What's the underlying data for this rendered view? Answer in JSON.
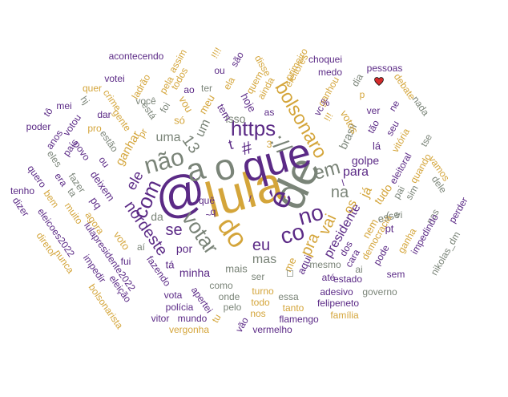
{
  "colors": {
    "purple": "#5b2a86",
    "gold": "#d4a53a",
    "gray": "#7a8478",
    "heart": "#d42b2b"
  },
  "heart_icon": "heart-emoji",
  "words": [
    {
      "text": "lula",
      "color": "gold"
    },
    {
      "text": "@",
      "color": "purple"
    },
    {
      "text": "de",
      "color": "gray"
    },
    {
      "text": "que",
      "color": "purple"
    },
    {
      "text": "o",
      "color": "gray"
    },
    {
      "text": "a",
      "color": "gray"
    },
    {
      "text": "é",
      "color": "purple"
    },
    {
      "text": "do",
      "color": "gold"
    },
    {
      "text": "não",
      "color": "gray"
    },
    {
      "text": "://",
      "color": "gray"
    },
    {
      "text": "no",
      "color": "purple"
    },
    {
      "text": "co",
      "color": "purple"
    },
    {
      "text": "com",
      "color": "purple"
    },
    {
      "text": "votar",
      "color": "gray"
    },
    {
      "text": "https",
      "color": "purple"
    },
    {
      "text": "bolsonaro",
      "color": "gold"
    },
    {
      "text": "em",
      "color": "gray"
    },
    {
      "text": "pra",
      "color": "gold"
    },
    {
      "text": "vai",
      "color": "gold"
    },
    {
      "text": "nordeste",
      "color": "purple"
    },
    {
      "text": "eu",
      "color": "purple"
    },
    {
      "text": "13",
      "color": "gray"
    },
    {
      "text": "se",
      "color": "purple"
    },
    {
      "text": "na",
      "color": "gray"
    },
    {
      "text": "#",
      "color": "purple"
    },
    {
      "text": "t",
      "color": "purple"
    },
    {
      "text": "ele",
      "color": "purple"
    },
    {
      "text": "uma",
      "color": "gray"
    },
    {
      "text": "um",
      "color": "gray"
    },
    {
      "text": "presidente",
      "color": "purple"
    },
    {
      "text": "os",
      "color": "gold"
    },
    {
      "text": "já",
      "color": "gold"
    },
    {
      "text": "para",
      "color": "purple"
    },
    {
      "text": "mas",
      "color": "gray"
    },
    {
      "text": "da",
      "color": "gray"
    },
    {
      "text": "por",
      "color": "purple"
    },
    {
      "text": "minha",
      "color": "purple"
    },
    {
      "text": "ganhar",
      "color": "gold"
    },
    {
      "text": "isso",
      "color": "gray"
    },
    {
      "text": "golpe",
      "color": "purple"
    },
    {
      "text": "brasil",
      "color": "gray"
    },
    {
      "text": "tudo",
      "color": "gold"
    },
    {
      "text": "votos",
      "color": "gold"
    },
    {
      "text": "hoje",
      "color": "purple"
    },
    {
      "text": "tem",
      "color": "purple"
    },
    {
      "text": "deixem",
      "color": "purple"
    },
    {
      "text": "só",
      "color": "gold"
    },
    {
      "text": "meu",
      "color": "gold"
    },
    {
      "text": "pq",
      "color": "purple"
    },
    {
      "text": "voto",
      "color": "gold"
    },
    {
      "text": "vou",
      "color": "gold"
    },
    {
      "text": "lá",
      "color": "purple"
    },
    {
      "text": "esse",
      "color": "gray"
    },
    {
      "text": "pt",
      "color": "purple"
    },
    {
      "text": "nem",
      "color": "gold"
    },
    {
      "text": "tá",
      "color": "purple"
    },
    {
      "text": "mais",
      "color": "gray"
    },
    {
      "text": "me",
      "color": "gold"
    },
    {
      "text": "aqui",
      "color": "purple"
    },
    {
      "text": "ser",
      "color": "gray"
    },
    {
      "text": "quem",
      "color": "gold"
    },
    {
      "text": "ainda",
      "color": "gold"
    },
    {
      "text": "disse",
      "color": "gold"
    },
    {
      "text": "eleitores",
      "color": "gold"
    },
    {
      "text": "primeiro",
      "color": "gold"
    },
    {
      "text": "choquei",
      "color": "purple"
    },
    {
      "text": "medo",
      "color": "purple"
    },
    {
      "text": "ganhou",
      "color": "gold"
    },
    {
      "text": "dia",
      "color": "gray"
    },
    {
      "text": "pessoas",
      "color": "purple"
    },
    {
      "text": "debate",
      "color": "gold"
    },
    {
      "text": "nada",
      "color": "gray"
    },
    {
      "text": "ver",
      "color": "purple"
    },
    {
      "text": "ne",
      "color": "purple"
    },
    {
      "text": "seu",
      "color": "purple"
    },
    {
      "text": "tão",
      "color": "purple"
    },
    {
      "text": "vitória",
      "color": "gold"
    },
    {
      "text": "eleitoral",
      "color": "purple"
    },
    {
      "text": "tse",
      "color": "gray"
    },
    {
      "text": "quando",
      "color": "gold"
    },
    {
      "text": "vamos",
      "color": "gold"
    },
    {
      "text": "dele",
      "color": "gray"
    },
    {
      "text": "sim",
      "color": "gray"
    },
    {
      "text": "pai",
      "color": "gray"
    },
    {
      "text": "perder",
      "color": "purple"
    },
    {
      "text": "nas",
      "color": "gray"
    },
    {
      "text": "ganha",
      "color": "gold"
    },
    {
      "text": "vc",
      "color": "purple"
    },
    {
      "text": "impedindo",
      "color": "purple"
    },
    {
      "text": "nikolas_dm",
      "color": "gray"
    },
    {
      "text": "sem",
      "color": "purple"
    },
    {
      "text": "pode",
      "color": "purple"
    },
    {
      "text": "democracia",
      "color": "gold"
    },
    {
      "text": "cara",
      "color": "purple"
    },
    {
      "text": "ai",
      "color": "gray"
    },
    {
      "text": "até",
      "color": "purple"
    },
    {
      "text": "mesmo",
      "color": "gray"
    },
    {
      "text": "estado",
      "color": "purple"
    },
    {
      "text": "adesivo",
      "color": "purple"
    },
    {
      "text": "governo",
      "color": "gray"
    },
    {
      "text": "felipeneto",
      "color": "purple"
    },
    {
      "text": "família",
      "color": "gold"
    },
    {
      "text": "tanto",
      "color": "gold"
    },
    {
      "text": "essa",
      "color": "gray"
    },
    {
      "text": "flamengo",
      "color": "purple"
    },
    {
      "text": "vermelho",
      "color": "purple"
    },
    {
      "text": "todo",
      "color": "gold"
    },
    {
      "text": "nos",
      "color": "gold"
    },
    {
      "text": "turno",
      "color": "gold"
    },
    {
      "text": "onde",
      "color": "gray"
    },
    {
      "text": "pelo",
      "color": "gray"
    },
    {
      "text": "vão",
      "color": "purple"
    },
    {
      "text": "tu",
      "color": "gold"
    },
    {
      "text": "como",
      "color": "gray"
    },
    {
      "text": "apertei",
      "color": "purple"
    },
    {
      "text": "mundo",
      "color": "purple"
    },
    {
      "text": "vitor",
      "color": "purple"
    },
    {
      "text": "vergonha",
      "color": "gold"
    },
    {
      "text": "polícia",
      "color": "purple"
    },
    {
      "text": "vota",
      "color": "purple"
    },
    {
      "text": "fazendo",
      "color": "purple"
    },
    {
      "text": "fui",
      "color": "purple"
    },
    {
      "text": "aí",
      "color": "gray"
    },
    {
      "text": "impedir",
      "color": "purple"
    },
    {
      "text": "eleição",
      "color": "purple"
    },
    {
      "text": "bolsonarista",
      "color": "gold"
    },
    {
      "text": "lulapresidente2022",
      "color": "purple"
    },
    {
      "text": "diretor",
      "color": "gold"
    },
    {
      "text": "nunca",
      "color": "gold"
    },
    {
      "text": "eleicoes2022",
      "color": "purple"
    },
    {
      "text": "muito",
      "color": "gold"
    },
    {
      "text": "agora",
      "color": "gold"
    },
    {
      "text": "dizer",
      "color": "purple"
    },
    {
      "text": "tenho",
      "color": "purple"
    },
    {
      "text": "bem",
      "color": "gold"
    },
    {
      "text": "quero",
      "color": "purple"
    },
    {
      "text": "era",
      "color": "purple"
    },
    {
      "text": "fazer",
      "color": "gray"
    },
    {
      "text": "ta",
      "color": "gray"
    },
    {
      "text": "eles",
      "color": "gray"
    },
    {
      "text": "povo",
      "color": "purple"
    },
    {
      "text": "ou",
      "color": "purple"
    },
    {
      "text": "estão",
      "color": "gray"
    },
    {
      "text": "pro",
      "color": "gold"
    },
    {
      "text": "gente",
      "color": "gold"
    },
    {
      "text": "está",
      "color": "gray"
    },
    {
      "text": "dar",
      "color": "purple"
    },
    {
      "text": "crime",
      "color": "gold"
    },
    {
      "text": "hj",
      "color": "gray"
    },
    {
      "text": "quer",
      "color": "gold"
    },
    {
      "text": "votei",
      "color": "purple"
    },
    {
      "text": "ladrão",
      "color": "gold"
    },
    {
      "text": "assim",
      "color": "gold"
    },
    {
      "text": "acontecendo",
      "color": "purple"
    },
    {
      "text": "pela",
      "color": "gold"
    },
    {
      "text": "todos",
      "color": "gold"
    },
    {
      "text": "!!!!",
      "color": "gold"
    },
    {
      "text": "são",
      "color": "purple"
    },
    {
      "text": "ela",
      "color": "gold"
    },
    {
      "text": "ter",
      "color": "gray"
    },
    {
      "text": "ao",
      "color": "purple"
    },
    {
      "text": "você",
      "color": "gray"
    },
    {
      "text": "foi",
      "color": "gray"
    },
    {
      "text": "ou",
      "color": "purple"
    },
    {
      "text": "poder",
      "color": "purple"
    },
    {
      "text": "anos",
      "color": "purple"
    },
    {
      "text": "votou",
      "color": "purple"
    },
    {
      "text": "país",
      "color": "purple"
    },
    {
      "text": "tô",
      "color": "purple"
    },
    {
      "text": "mei",
      "color": "purple"
    },
    {
      "text": "pr",
      "color": "gold"
    },
    {
      "text": "quê",
      "color": "purple"
    },
    {
      "text": "q",
      "color": "purple"
    },
    {
      "text": "◻",
      "color": "gray"
    },
    {
      "text": "%",
      "color": "purple"
    },
    {
      "text": "!!!",
      "color": "gold"
    },
    {
      "text": "3",
      "color": "gold"
    },
    {
      "text": "\\",
      "color": "purple"
    },
    {
      "text": "/",
      "color": "purple"
    },
    {
      "text": "vi",
      "color": "gray"
    },
    {
      "text": "(",
      "color": "gray"
    },
    {
      "text": "~",
      "color": "purple"
    },
    {
      "text": "dos",
      "color": "purple"
    },
    {
      "text": "as",
      "color": "purple"
    },
    {
      "text": "p",
      "color": "gold"
    }
  ]
}
